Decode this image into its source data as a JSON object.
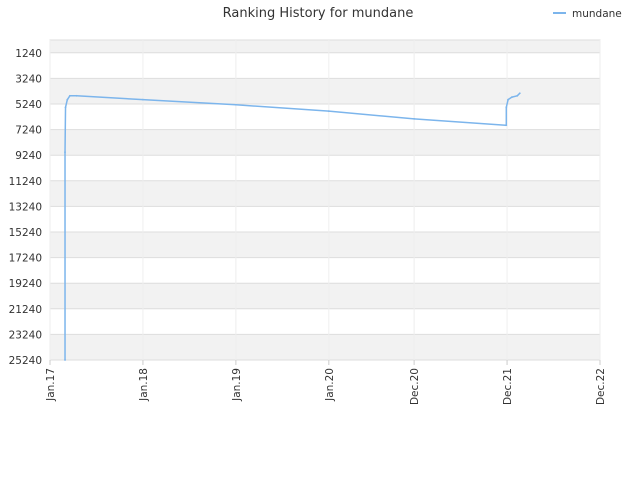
{
  "chart_data": {
    "type": "line",
    "title": "Ranking History for mundane",
    "legend": {
      "position": "top-right",
      "entries": [
        "mundane"
      ]
    },
    "y_axis": {
      "inverted": true,
      "range": [
        240,
        25240
      ],
      "tick_values": [
        1240,
        3240,
        5240,
        7240,
        9240,
        11240,
        13240,
        15240,
        17240,
        19240,
        21240,
        23240,
        25240
      ],
      "tick_labels": [
        "1240",
        "3240",
        "5240",
        "7240",
        "9240",
        "11240",
        "13240",
        "15240",
        "17240",
        "19240",
        "21240",
        "23240",
        "25240"
      ],
      "alternating_bands": true
    },
    "x_axis": {
      "range": [
        "2017-01-01",
        "2022-12-01"
      ],
      "tick_values": [
        "2017-01-01",
        "2018-01-01",
        "2019-01-01",
        "2020-01-01",
        "2020-12-01",
        "2021-12-01",
        "2022-12-01"
      ],
      "tick_labels": [
        "Jan.17",
        "Jan.18",
        "Jan.19",
        "Jan.20",
        "Dec.20",
        "Dec.21",
        "Dec.22"
      ]
    },
    "colors": {
      "line": "#7cb5ec",
      "band": "#f2f2f2",
      "gridline": "#dddddd",
      "axis": "#cccccc"
    },
    "series": [
      {
        "name": "mundane",
        "points": [
          {
            "x": "2017-03-01",
            "y": 25240
          },
          {
            "x": "2017-03-01",
            "y": 9000
          },
          {
            "x": "2017-03-03",
            "y": 5500
          },
          {
            "x": "2017-03-10",
            "y": 4900
          },
          {
            "x": "2017-03-20",
            "y": 4600
          },
          {
            "x": "2017-04-15",
            "y": 4600
          },
          {
            "x": "2018-01-01",
            "y": 4900
          },
          {
            "x": "2019-01-01",
            "y": 5300
          },
          {
            "x": "2020-01-01",
            "y": 5800
          },
          {
            "x": "2020-12-01",
            "y": 6400
          },
          {
            "x": "2021-11-25",
            "y": 6900
          },
          {
            "x": "2021-11-28",
            "y": 6900
          },
          {
            "x": "2021-11-28",
            "y": 5500
          },
          {
            "x": "2021-12-05",
            "y": 4900
          },
          {
            "x": "2021-12-20",
            "y": 4700
          },
          {
            "x": "2022-01-10",
            "y": 4600
          },
          {
            "x": "2022-01-20",
            "y": 4400
          }
        ]
      }
    ]
  }
}
